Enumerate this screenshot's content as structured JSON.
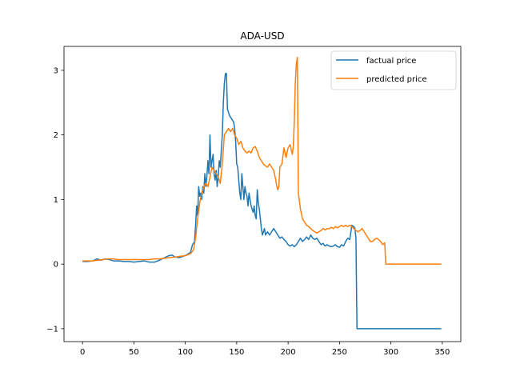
{
  "chart_data": {
    "type": "line",
    "title": "ADA-USD",
    "xlabel": "",
    "ylabel": "",
    "xlim": [
      -18,
      368
    ],
    "ylim": [
      -1.2,
      3.37
    ],
    "xticks": [
      0,
      50,
      100,
      150,
      200,
      250,
      300,
      350
    ],
    "yticks": [
      -1,
      0,
      1,
      2,
      3
    ],
    "xtick_labels": [
      "0",
      "50",
      "100",
      "150",
      "200",
      "250",
      "300",
      "350"
    ],
    "ytick_labels": [
      "−1",
      "0",
      "1",
      "2",
      "3"
    ],
    "grid": false,
    "legend": "top-right",
    "series": [
      {
        "name": "factual price",
        "color": "#1f77b4",
        "points": [
          [
            0,
            0.04
          ],
          [
            5,
            0.04
          ],
          [
            10,
            0.05
          ],
          [
            14,
            0.08
          ],
          [
            18,
            0.06
          ],
          [
            22,
            0.08
          ],
          [
            26,
            0.07
          ],
          [
            30,
            0.05
          ],
          [
            35,
            0.05
          ],
          [
            40,
            0.04
          ],
          [
            45,
            0.04
          ],
          [
            50,
            0.03
          ],
          [
            55,
            0.04
          ],
          [
            60,
            0.05
          ],
          [
            65,
            0.03
          ],
          [
            70,
            0.03
          ],
          [
            75,
            0.06
          ],
          [
            80,
            0.1
          ],
          [
            84,
            0.13
          ],
          [
            87,
            0.14
          ],
          [
            90,
            0.11
          ],
          [
            94,
            0.1
          ],
          [
            98,
            0.12
          ],
          [
            102,
            0.15
          ],
          [
            105,
            0.18
          ],
          [
            107,
            0.3
          ],
          [
            109,
            0.35
          ],
          [
            110,
            0.6
          ],
          [
            111,
            0.9
          ],
          [
            112,
            0.75
          ],
          [
            113,
            1.2
          ],
          [
            114,
            1.05
          ],
          [
            115,
            1.1
          ],
          [
            116,
            1.0
          ],
          [
            117,
            1.2
          ],
          [
            118,
            1.1
          ],
          [
            119,
            1.4
          ],
          [
            120,
            1.2
          ],
          [
            121,
            1.35
          ],
          [
            122,
            1.6
          ],
          [
            123,
            1.4
          ],
          [
            124,
            2.0
          ],
          [
            125,
            1.5
          ],
          [
            126,
            1.6
          ],
          [
            127,
            1.7
          ],
          [
            128,
            1.4
          ],
          [
            129,
            1.3
          ],
          [
            130,
            1.45
          ],
          [
            131,
            1.2
          ],
          [
            132,
            1.35
          ],
          [
            133,
            1.6
          ],
          [
            134,
            1.5
          ],
          [
            135,
            1.75
          ],
          [
            136,
            2.0
          ],
          [
            137,
            2.5
          ],
          [
            138,
            2.8
          ],
          [
            139,
            2.95
          ],
          [
            140,
            2.95
          ],
          [
            141,
            2.4
          ],
          [
            143,
            2.3
          ],
          [
            145,
            2.25
          ],
          [
            147,
            2.2
          ],
          [
            148,
            2.1
          ],
          [
            149,
            1.9
          ],
          [
            150,
            1.55
          ],
          [
            151,
            1.5
          ],
          [
            152,
            1.3
          ],
          [
            153,
            1.1
          ],
          [
            154,
            1.0
          ],
          [
            155,
            1.4
          ],
          [
            156,
            1.2
          ],
          [
            157,
            1.0
          ],
          [
            158,
            1.2
          ],
          [
            159,
            1.1
          ],
          [
            160,
            1.05
          ],
          [
            161,
            0.9
          ],
          [
            162,
            1.1
          ],
          [
            163,
            1.0
          ],
          [
            164,
            0.9
          ],
          [
            165,
            0.85
          ],
          [
            166,
            0.8
          ],
          [
            167,
            0.9
          ],
          [
            168,
            0.75
          ],
          [
            169,
            0.7
          ],
          [
            170,
            1.15
          ],
          [
            171,
            0.95
          ],
          [
            172,
            0.85
          ],
          [
            173,
            0.7
          ],
          [
            174,
            0.55
          ],
          [
            175,
            0.45
          ],
          [
            176,
            0.5
          ],
          [
            177,
            0.55
          ],
          [
            178,
            0.45
          ],
          [
            180,
            0.5
          ],
          [
            182,
            0.45
          ],
          [
            184,
            0.5
          ],
          [
            186,
            0.55
          ],
          [
            188,
            0.5
          ],
          [
            190,
            0.45
          ],
          [
            192,
            0.4
          ],
          [
            194,
            0.42
          ],
          [
            196,
            0.38
          ],
          [
            198,
            0.35
          ],
          [
            200,
            0.3
          ],
          [
            202,
            0.28
          ],
          [
            204,
            0.3
          ],
          [
            206,
            0.27
          ],
          [
            208,
            0.3
          ],
          [
            210,
            0.35
          ],
          [
            212,
            0.4
          ],
          [
            214,
            0.35
          ],
          [
            216,
            0.38
          ],
          [
            218,
            0.42
          ],
          [
            220,
            0.38
          ],
          [
            222,
            0.45
          ],
          [
            224,
            0.4
          ],
          [
            226,
            0.38
          ],
          [
            228,
            0.4
          ],
          [
            230,
            0.35
          ],
          [
            232,
            0.3
          ],
          [
            234,
            0.32
          ],
          [
            236,
            0.28
          ],
          [
            238,
            0.3
          ],
          [
            240,
            0.28
          ],
          [
            242,
            0.27
          ],
          [
            244,
            0.28
          ],
          [
            246,
            0.3
          ],
          [
            248,
            0.27
          ],
          [
            250,
            0.26
          ],
          [
            252,
            0.3
          ],
          [
            254,
            0.28
          ],
          [
            256,
            0.35
          ],
          [
            258,
            0.4
          ],
          [
            260,
            0.38
          ],
          [
            262,
            0.6
          ],
          [
            264,
            0.58
          ],
          [
            265,
            0.55
          ],
          [
            266,
            0.4
          ],
          [
            267,
            -1.0
          ],
          [
            280,
            -1.0
          ],
          [
            300,
            -1.0
          ],
          [
            320,
            -1.0
          ],
          [
            349,
            -1.0
          ]
        ]
      },
      {
        "name": "predicted price",
        "color": "#ff7f0e",
        "points": [
          [
            0,
            0.05
          ],
          [
            5,
            0.05
          ],
          [
            10,
            0.05
          ],
          [
            15,
            0.06
          ],
          [
            20,
            0.07
          ],
          [
            25,
            0.08
          ],
          [
            30,
            0.08
          ],
          [
            35,
            0.07
          ],
          [
            40,
            0.07
          ],
          [
            45,
            0.07
          ],
          [
            50,
            0.07
          ],
          [
            55,
            0.07
          ],
          [
            60,
            0.07
          ],
          [
            65,
            0.07
          ],
          [
            70,
            0.08
          ],
          [
            75,
            0.08
          ],
          [
            80,
            0.09
          ],
          [
            85,
            0.1
          ],
          [
            90,
            0.11
          ],
          [
            95,
            0.12
          ],
          [
            100,
            0.13
          ],
          [
            105,
            0.16
          ],
          [
            108,
            0.22
          ],
          [
            110,
            0.4
          ],
          [
            112,
            0.7
          ],
          [
            114,
            0.95
          ],
          [
            116,
            1.1
          ],
          [
            118,
            1.2
          ],
          [
            120,
            1.25
          ],
          [
            122,
            1.2
          ],
          [
            124,
            1.35
          ],
          [
            126,
            1.5
          ],
          [
            128,
            1.45
          ],
          [
            130,
            1.4
          ],
          [
            132,
            1.35
          ],
          [
            134,
            1.25
          ],
          [
            136,
            1.55
          ],
          [
            138,
            2.0
          ],
          [
            140,
            2.05
          ],
          [
            142,
            2.1
          ],
          [
            144,
            2.05
          ],
          [
            146,
            2.1
          ],
          [
            148,
            2.0
          ],
          [
            150,
            1.95
          ],
          [
            152,
            1.85
          ],
          [
            154,
            1.9
          ],
          [
            156,
            1.8
          ],
          [
            158,
            1.75
          ],
          [
            160,
            1.72
          ],
          [
            162,
            1.75
          ],
          [
            164,
            1.72
          ],
          [
            166,
            1.8
          ],
          [
            168,
            1.82
          ],
          [
            170,
            1.75
          ],
          [
            172,
            1.65
          ],
          [
            174,
            1.6
          ],
          [
            176,
            1.55
          ],
          [
            178,
            1.52
          ],
          [
            180,
            1.5
          ],
          [
            182,
            1.55
          ],
          [
            184,
            1.5
          ],
          [
            186,
            1.45
          ],
          [
            188,
            1.3
          ],
          [
            189,
            1.2
          ],
          [
            190,
            1.15
          ],
          [
            191,
            1.2
          ],
          [
            192,
            1.5
          ],
          [
            194,
            1.55
          ],
          [
            196,
            1.8
          ],
          [
            198,
            1.65
          ],
          [
            200,
            1.8
          ],
          [
            202,
            1.85
          ],
          [
            204,
            1.7
          ],
          [
            205,
            1.8
          ],
          [
            206,
            2.2
          ],
          [
            207,
            2.8
          ],
          [
            208,
            3.1
          ],
          [
            209,
            3.2
          ],
          [
            210,
            1.1
          ],
          [
            212,
            0.85
          ],
          [
            214,
            0.7
          ],
          [
            216,
            0.65
          ],
          [
            218,
            0.6
          ],
          [
            220,
            0.58
          ],
          [
            222,
            0.55
          ],
          [
            224,
            0.52
          ],
          [
            226,
            0.5
          ],
          [
            228,
            0.48
          ],
          [
            230,
            0.5
          ],
          [
            232,
            0.52
          ],
          [
            234,
            0.55
          ],
          [
            236,
            0.53
          ],
          [
            238,
            0.55
          ],
          [
            240,
            0.55
          ],
          [
            242,
            0.57
          ],
          [
            244,
            0.55
          ],
          [
            246,
            0.58
          ],
          [
            248,
            0.56
          ],
          [
            250,
            0.58
          ],
          [
            252,
            0.6
          ],
          [
            254,
            0.58
          ],
          [
            256,
            0.6
          ],
          [
            258,
            0.58
          ],
          [
            260,
            0.6
          ],
          [
            262,
            0.58
          ],
          [
            264,
            0.55
          ],
          [
            266,
            0.52
          ],
          [
            268,
            0.5
          ],
          [
            270,
            0.52
          ],
          [
            272,
            0.55
          ],
          [
            274,
            0.5
          ],
          [
            276,
            0.45
          ],
          [
            278,
            0.4
          ],
          [
            280,
            0.35
          ],
          [
            282,
            0.35
          ],
          [
            284,
            0.38
          ],
          [
            286,
            0.4
          ],
          [
            288,
            0.38
          ],
          [
            290,
            0.35
          ],
          [
            292,
            0.3
          ],
          [
            294,
            0.33
          ],
          [
            295,
            0.0
          ],
          [
            300,
            0.0
          ],
          [
            320,
            0.0
          ],
          [
            340,
            0.0
          ],
          [
            349,
            0.0
          ]
        ]
      }
    ]
  }
}
